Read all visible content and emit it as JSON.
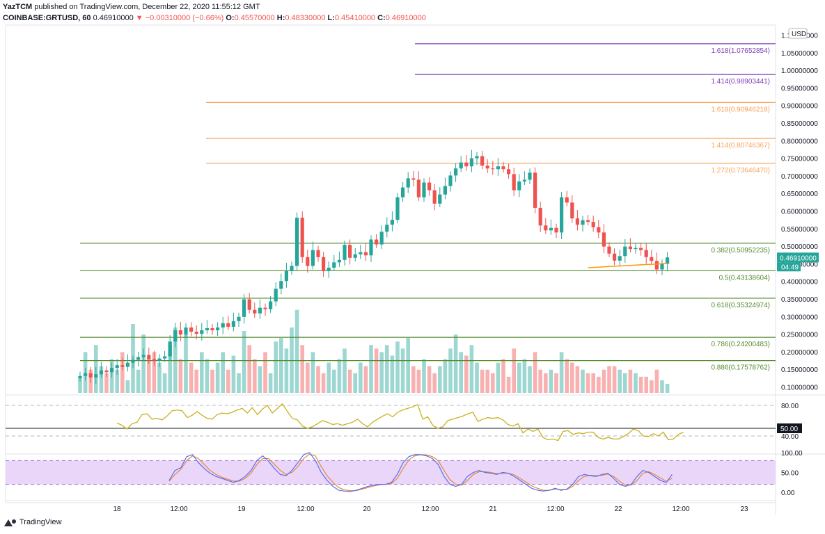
{
  "header": {
    "publisher": "YazTCM",
    "published_text": "published on TradingView.com, December 22, 2020 11:55:12 GMT",
    "symbol": "COINBASE:GRTUSD, 60",
    "last": "0.46910000",
    "change": "▼ −0.00310000 (−0.66%)",
    "o_label": "O:",
    "o": "0.45570000",
    "h_label": "H:",
    "h": "0.48330000",
    "l_label": "L:",
    "l": "0.45410000",
    "c_label": "C:",
    "c": "0.46910000"
  },
  "footer": {
    "logo_text": "TradingView"
  },
  "colors": {
    "up": "#26a69a",
    "down": "#ef5350",
    "fib_purple": "#7b3fb4",
    "fib_orange": "#f7a35c",
    "fib_green": "#558b2f",
    "rsi_line": "#c9b21d",
    "stoch_k": "#5b6ef0",
    "stoch_d": "#e08a36",
    "stoch_band": "#e5ccf8"
  },
  "chart_data": {
    "type": "candlestick",
    "currency": "USD",
    "price_axis": {
      "min": 0.1,
      "max": 1.1,
      "ticks": [
        "1.10000000",
        "1.05000000",
        "1.00000000",
        "0.95000000",
        "0.90000000",
        "0.85000000",
        "0.80000000",
        "0.75000000",
        "0.70000000",
        "0.65000000",
        "0.60000000",
        "0.55000000",
        "0.50000000",
        "0.45000000",
        "0.40000000",
        "0.35000000",
        "0.30000000",
        "0.25000000",
        "0.20000000",
        "0.15000000",
        "0.10000000"
      ],
      "tick_values": [
        1.1,
        1.05,
        1.0,
        0.95,
        0.9,
        0.85,
        0.8,
        0.75,
        0.7,
        0.65,
        0.6,
        0.55,
        0.5,
        0.45,
        0.4,
        0.35,
        0.3,
        0.25,
        0.2,
        0.15,
        0.1
      ],
      "current_price_label": "0.46910000",
      "countdown_label": "04:49"
    },
    "time_axis": {
      "labels": [
        "18",
        "12:00",
        "19",
        "12:00",
        "20",
        "12:00",
        "21",
        "12:00",
        "22",
        "12:00",
        "23"
      ]
    },
    "fib_levels": [
      {
        "label": "1.618(1.07652854)",
        "value": 1.07652854,
        "color": "purple",
        "from_bar": 67
      },
      {
        "label": "1.414(0.98903441)",
        "value": 0.98903441,
        "color": "purple",
        "from_bar": 67
      },
      {
        "label": "1.618(0.90946218)",
        "value": 0.90946218,
        "color": "orange",
        "from_bar": 26
      },
      {
        "label": "1.414(0.80746367)",
        "value": 0.80746367,
        "color": "orange",
        "from_bar": 26
      },
      {
        "label": "1.272(0.73646470)",
        "value": 0.7364647,
        "color": "orange",
        "from_bar": 26
      },
      {
        "label": "0.382(0.50952235)",
        "value": 0.50952235,
        "color": "green",
        "from_bar": 0
      },
      {
        "label": "0.5(0.43138604)",
        "value": 0.43138604,
        "color": "green",
        "from_bar": 0
      },
      {
        "label": "0.618(0.35324974)",
        "value": 0.35324974,
        "color": "green",
        "from_bar": 0
      },
      {
        "label": "0.786(0.24200483)",
        "value": 0.24200483,
        "color": "green",
        "from_bar": 0
      },
      {
        "label": "0.886(0.17578762)",
        "value": 0.17578762,
        "color": "green",
        "from_bar": 0
      }
    ],
    "candles_close": [
      0.132,
      0.14,
      0.128,
      0.137,
      0.148,
      0.143,
      0.155,
      0.163,
      0.158,
      0.17,
      0.178,
      0.186,
      0.192,
      0.18,
      0.176,
      0.182,
      0.188,
      0.23,
      0.262,
      0.25,
      0.27,
      0.258,
      0.252,
      0.262,
      0.268,
      0.262,
      0.27,
      0.282,
      0.272,
      0.288,
      0.3,
      0.35,
      0.32,
      0.31,
      0.326,
      0.322,
      0.344,
      0.38,
      0.402,
      0.43,
      0.445,
      0.582,
      0.47,
      0.445,
      0.49,
      0.47,
      0.43,
      0.44,
      0.455,
      0.462,
      0.505,
      0.468,
      0.478,
      0.484,
      0.475,
      0.52,
      0.506,
      0.542,
      0.562,
      0.576,
      0.64,
      0.668,
      0.694,
      0.69,
      0.64,
      0.682,
      0.66,
      0.622,
      0.648,
      0.672,
      0.702,
      0.722,
      0.739,
      0.728,
      0.751,
      0.757,
      0.73,
      0.722,
      0.72,
      0.728,
      0.72,
      0.706,
      0.66,
      0.685,
      0.69,
      0.71,
      0.61,
      0.56,
      0.546,
      0.553,
      0.54,
      0.64,
      0.625,
      0.58,
      0.562,
      0.575,
      0.57,
      0.555,
      0.54,
      0.5,
      0.48,
      0.46,
      0.473,
      0.5,
      0.493,
      0.496,
      0.49,
      0.47,
      0.459,
      0.435,
      0.451,
      0.469
    ],
    "volume": [
      0.13,
      0.2,
      0.15,
      0.22,
      0.16,
      0.14,
      0.18,
      0.15,
      0.2,
      0.12,
      0.28,
      0.15,
      0.25,
      0.18,
      0.2,
      0.17,
      0.14,
      0.22,
      0.27,
      0.18,
      0.25,
      0.17,
      0.15,
      0.2,
      0.18,
      0.15,
      0.17,
      0.2,
      0.15,
      0.19,
      0.14,
      0.26,
      0.22,
      0.18,
      0.16,
      0.2,
      0.14,
      0.23,
      0.24,
      0.21,
      0.27,
      0.32,
      0.22,
      0.17,
      0.2,
      0.16,
      0.14,
      0.17,
      0.15,
      0.18,
      0.21,
      0.15,
      0.14,
      0.17,
      0.16,
      0.22,
      0.21,
      0.2,
      0.22,
      0.19,
      0.23,
      0.21,
      0.24,
      0.16,
      0.15,
      0.18,
      0.16,
      0.14,
      0.16,
      0.18,
      0.21,
      0.25,
      0.2,
      0.19,
      0.22,
      0.17,
      0.15,
      0.15,
      0.14,
      0.17,
      0.18,
      0.13,
      0.21,
      0.17,
      0.18,
      0.16,
      0.2,
      0.15,
      0.14,
      0.15,
      0.14,
      0.2,
      0.18,
      0.17,
      0.16,
      0.15,
      0.14,
      0.14,
      0.13,
      0.15,
      0.16,
      0.16,
      0.15,
      0.14,
      0.15,
      0.14,
      0.13,
      0.13,
      0.12,
      0.15,
      0.12,
      0.11
    ],
    "rsi": {
      "axis_labels": [
        "80.00",
        "50.00",
        "40.00"
      ],
      "axis_values": [
        80,
        50,
        40
      ],
      "current_label": "50.00",
      "values": [
        57,
        54,
        49,
        56,
        58,
        68,
        69,
        62,
        63,
        61,
        66,
        73,
        74,
        73,
        64,
        67,
        72,
        67,
        63,
        62,
        68,
        70,
        69,
        71,
        74,
        76,
        70,
        77,
        68,
        75,
        80,
        70,
        76,
        82,
        72,
        63,
        61,
        53,
        50,
        52,
        56,
        60,
        58,
        55,
        56,
        54,
        56,
        58,
        62,
        56,
        52,
        58,
        62,
        66,
        69,
        65,
        71,
        74,
        76,
        78,
        81,
        62,
        65,
        54,
        50,
        52,
        60,
        62,
        64,
        66,
        69,
        71,
        59,
        62,
        64,
        63,
        64,
        61,
        55,
        53,
        56,
        44,
        49,
        46,
        49,
        38,
        35,
        36,
        34,
        46,
        47,
        42,
        44,
        43,
        45,
        45,
        38,
        36,
        38,
        36,
        36,
        39,
        43,
        49,
        47,
        40,
        39,
        43,
        40,
        45,
        35,
        36,
        42,
        45
      ]
    },
    "stoch": {
      "axis_labels": [
        "100.00",
        "50.00",
        "0.00"
      ],
      "axis_values": [
        100,
        50,
        0
      ],
      "k": [
        30,
        55,
        62,
        90,
        95,
        75,
        60,
        48,
        40,
        35,
        30,
        25,
        30,
        40,
        55,
        80,
        92,
        78,
        60,
        45,
        42,
        55,
        75,
        95,
        100,
        80,
        50,
        30,
        15,
        5,
        3,
        2,
        5,
        10,
        15,
        18,
        20,
        20,
        25,
        45,
        75,
        90,
        95,
        95,
        92,
        85,
        70,
        40,
        20,
        15,
        20,
        40,
        50,
        55,
        50,
        48,
        45,
        50,
        48,
        40,
        30,
        20,
        10,
        5,
        3,
        5,
        10,
        5,
        8,
        20,
        40,
        45,
        42,
        40,
        45,
        48,
        35,
        20,
        15,
        20,
        40,
        55,
        50,
        40,
        30,
        25,
        45
      ],
      "d": [
        28,
        45,
        58,
        80,
        92,
        85,
        70,
        55,
        45,
        38,
        33,
        28,
        28,
        35,
        48,
        70,
        85,
        85,
        70,
        55,
        45,
        50,
        65,
        85,
        96,
        92,
        65,
        42,
        25,
        12,
        6,
        4,
        4,
        8,
        12,
        16,
        19,
        20,
        22,
        35,
        60,
        82,
        92,
        95,
        94,
        90,
        80,
        55,
        32,
        20,
        18,
        30,
        45,
        52,
        52,
        50,
        47,
        48,
        48,
        44,
        35,
        26,
        16,
        10,
        5,
        5,
        8,
        7,
        7,
        15,
        30,
        40,
        43,
        42,
        43,
        46,
        40,
        28,
        18,
        18,
        30,
        48,
        52,
        45,
        36,
        28,
        35
      ]
    }
  }
}
